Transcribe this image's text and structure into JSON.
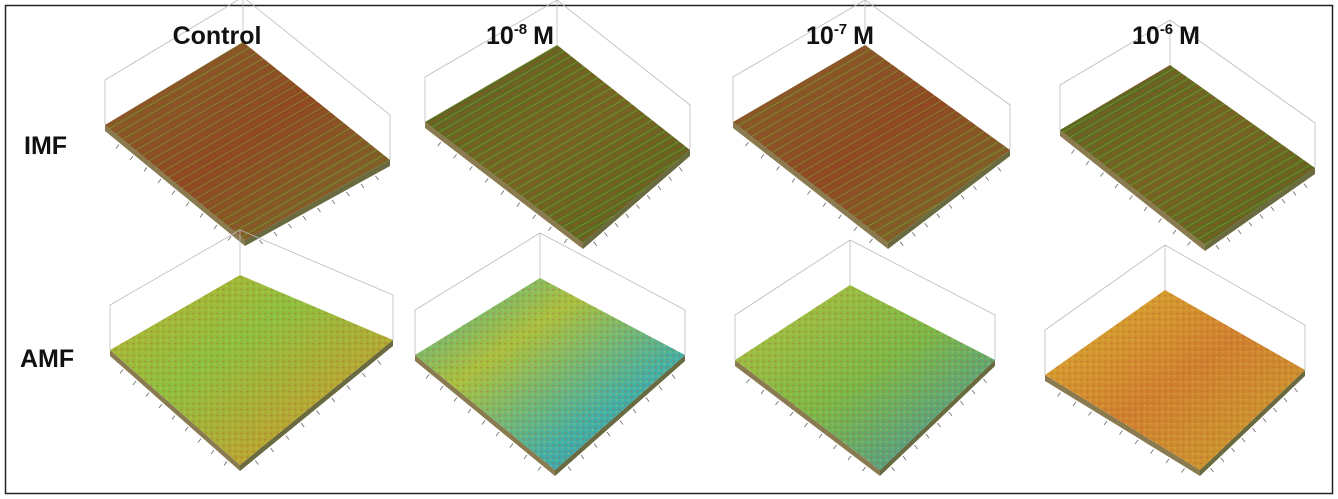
{
  "columns": [
    {
      "label": "Control"
    },
    {
      "base": "10",
      "exponent": "-8",
      "unit": "M"
    },
    {
      "base": "10",
      "exponent": "-7",
      "unit": "M"
    },
    {
      "base": "10",
      "exponent": "-6",
      "unit": "M"
    }
  ],
  "rows": [
    {
      "label": "IMF"
    },
    {
      "label": "AMF"
    }
  ]
}
